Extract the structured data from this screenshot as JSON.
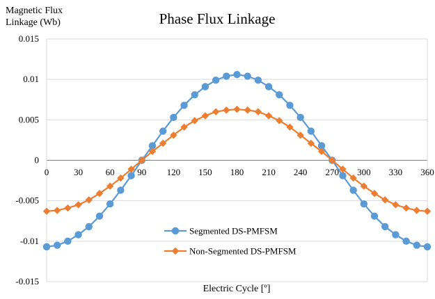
{
  "chart_data": {
    "type": "line",
    "title": "Phase Flux Linkage",
    "ylabel_lines": [
      "Magnetic Flux",
      "Linkage (Wb)"
    ],
    "xlabel": "Electric Cycle [º]",
    "xlim": [
      0,
      360
    ],
    "ylim": [
      -0.015,
      0.015
    ],
    "x_ticks": [
      0,
      30,
      60,
      90,
      120,
      150,
      180,
      210,
      240,
      270,
      300,
      330,
      360
    ],
    "x_tick_labels": [
      "0",
      "30",
      "60",
      "90",
      "120",
      "150",
      "180",
      "210",
      "240",
      "270",
      "300",
      "330",
      "360"
    ],
    "y_ticks": [
      0.015,
      0.01,
      0.005,
      0,
      -0.005,
      -0.01,
      -0.015
    ],
    "y_tick_labels": [
      "0.015",
      "0.01",
      "0.005",
      "0",
      "-0.005",
      "-0.01",
      "-0.015"
    ],
    "grid": true,
    "legend_position": "bottom-center",
    "x": [
      0,
      10,
      20,
      30,
      40,
      50,
      60,
      70,
      80,
      90,
      100,
      110,
      120,
      130,
      140,
      150,
      160,
      170,
      180,
      190,
      200,
      210,
      220,
      230,
      240,
      250,
      260,
      270,
      280,
      290,
      300,
      310,
      320,
      330,
      340,
      350,
      360
    ],
    "series": [
      {
        "name": "Segmented DS-PMFSM",
        "color": "#5b9bd5",
        "marker": "circle",
        "values": [
          -0.0107,
          -0.0105,
          -0.01,
          -0.0092,
          -0.0082,
          -0.0069,
          -0.0054,
          -0.0037,
          -0.0019,
          0.0,
          0.0018,
          0.0036,
          0.0053,
          0.0068,
          0.0081,
          0.0091,
          0.0099,
          0.0104,
          0.0106,
          0.0104,
          0.0099,
          0.0091,
          0.0081,
          0.0068,
          0.0053,
          0.0036,
          0.0018,
          0.0,
          -0.0019,
          -0.0037,
          -0.0054,
          -0.0069,
          -0.0082,
          -0.0092,
          -0.01,
          -0.0105,
          -0.0107
        ]
      },
      {
        "name": "Non-Segmented DS-PMFSM",
        "color": "#ed7d31",
        "marker": "diamond",
        "values": [
          -0.0063,
          -0.0062,
          -0.0059,
          -0.0055,
          -0.0049,
          -0.0041,
          -0.0032,
          -0.0022,
          -0.0011,
          0.0,
          0.0011,
          0.0021,
          0.0031,
          0.0041,
          0.0049,
          0.0055,
          0.006,
          0.0062,
          0.0063,
          0.0062,
          0.006,
          0.0055,
          0.0049,
          0.0041,
          0.0031,
          0.0021,
          0.0011,
          0.0,
          -0.0011,
          -0.0022,
          -0.0032,
          -0.0041,
          -0.0049,
          -0.0055,
          -0.0059,
          -0.0062,
          -0.0063
        ]
      }
    ]
  }
}
